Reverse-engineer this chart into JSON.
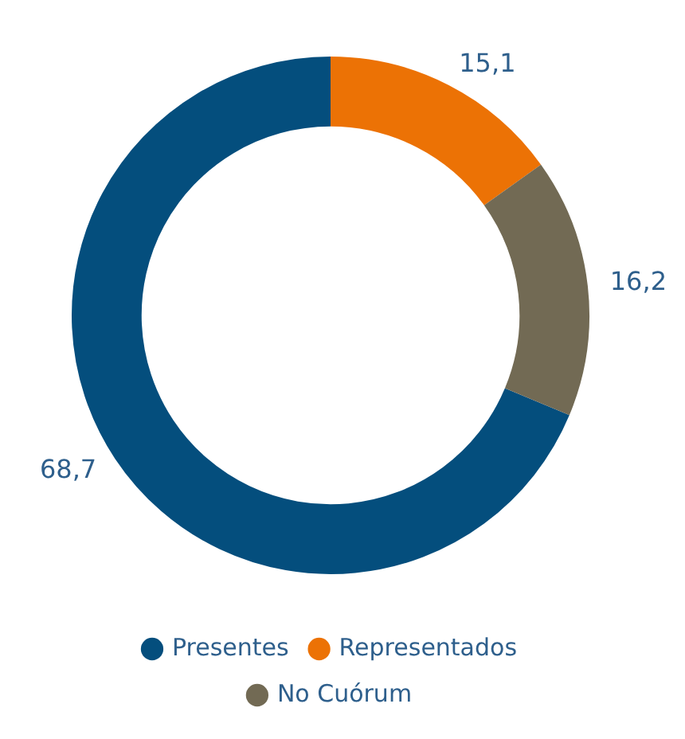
{
  "chart_data": {
    "type": "donut",
    "categories": [
      "Presentes",
      "Representados",
      "No Cuórum"
    ],
    "values": [
      68.7,
      15.1,
      16.2
    ],
    "colors": [
      "#044e7d",
      "#ec7205",
      "#726a54"
    ],
    "value_labels": [
      "68,7",
      "15,1",
      "16,2"
    ],
    "legend": "bottom"
  }
}
